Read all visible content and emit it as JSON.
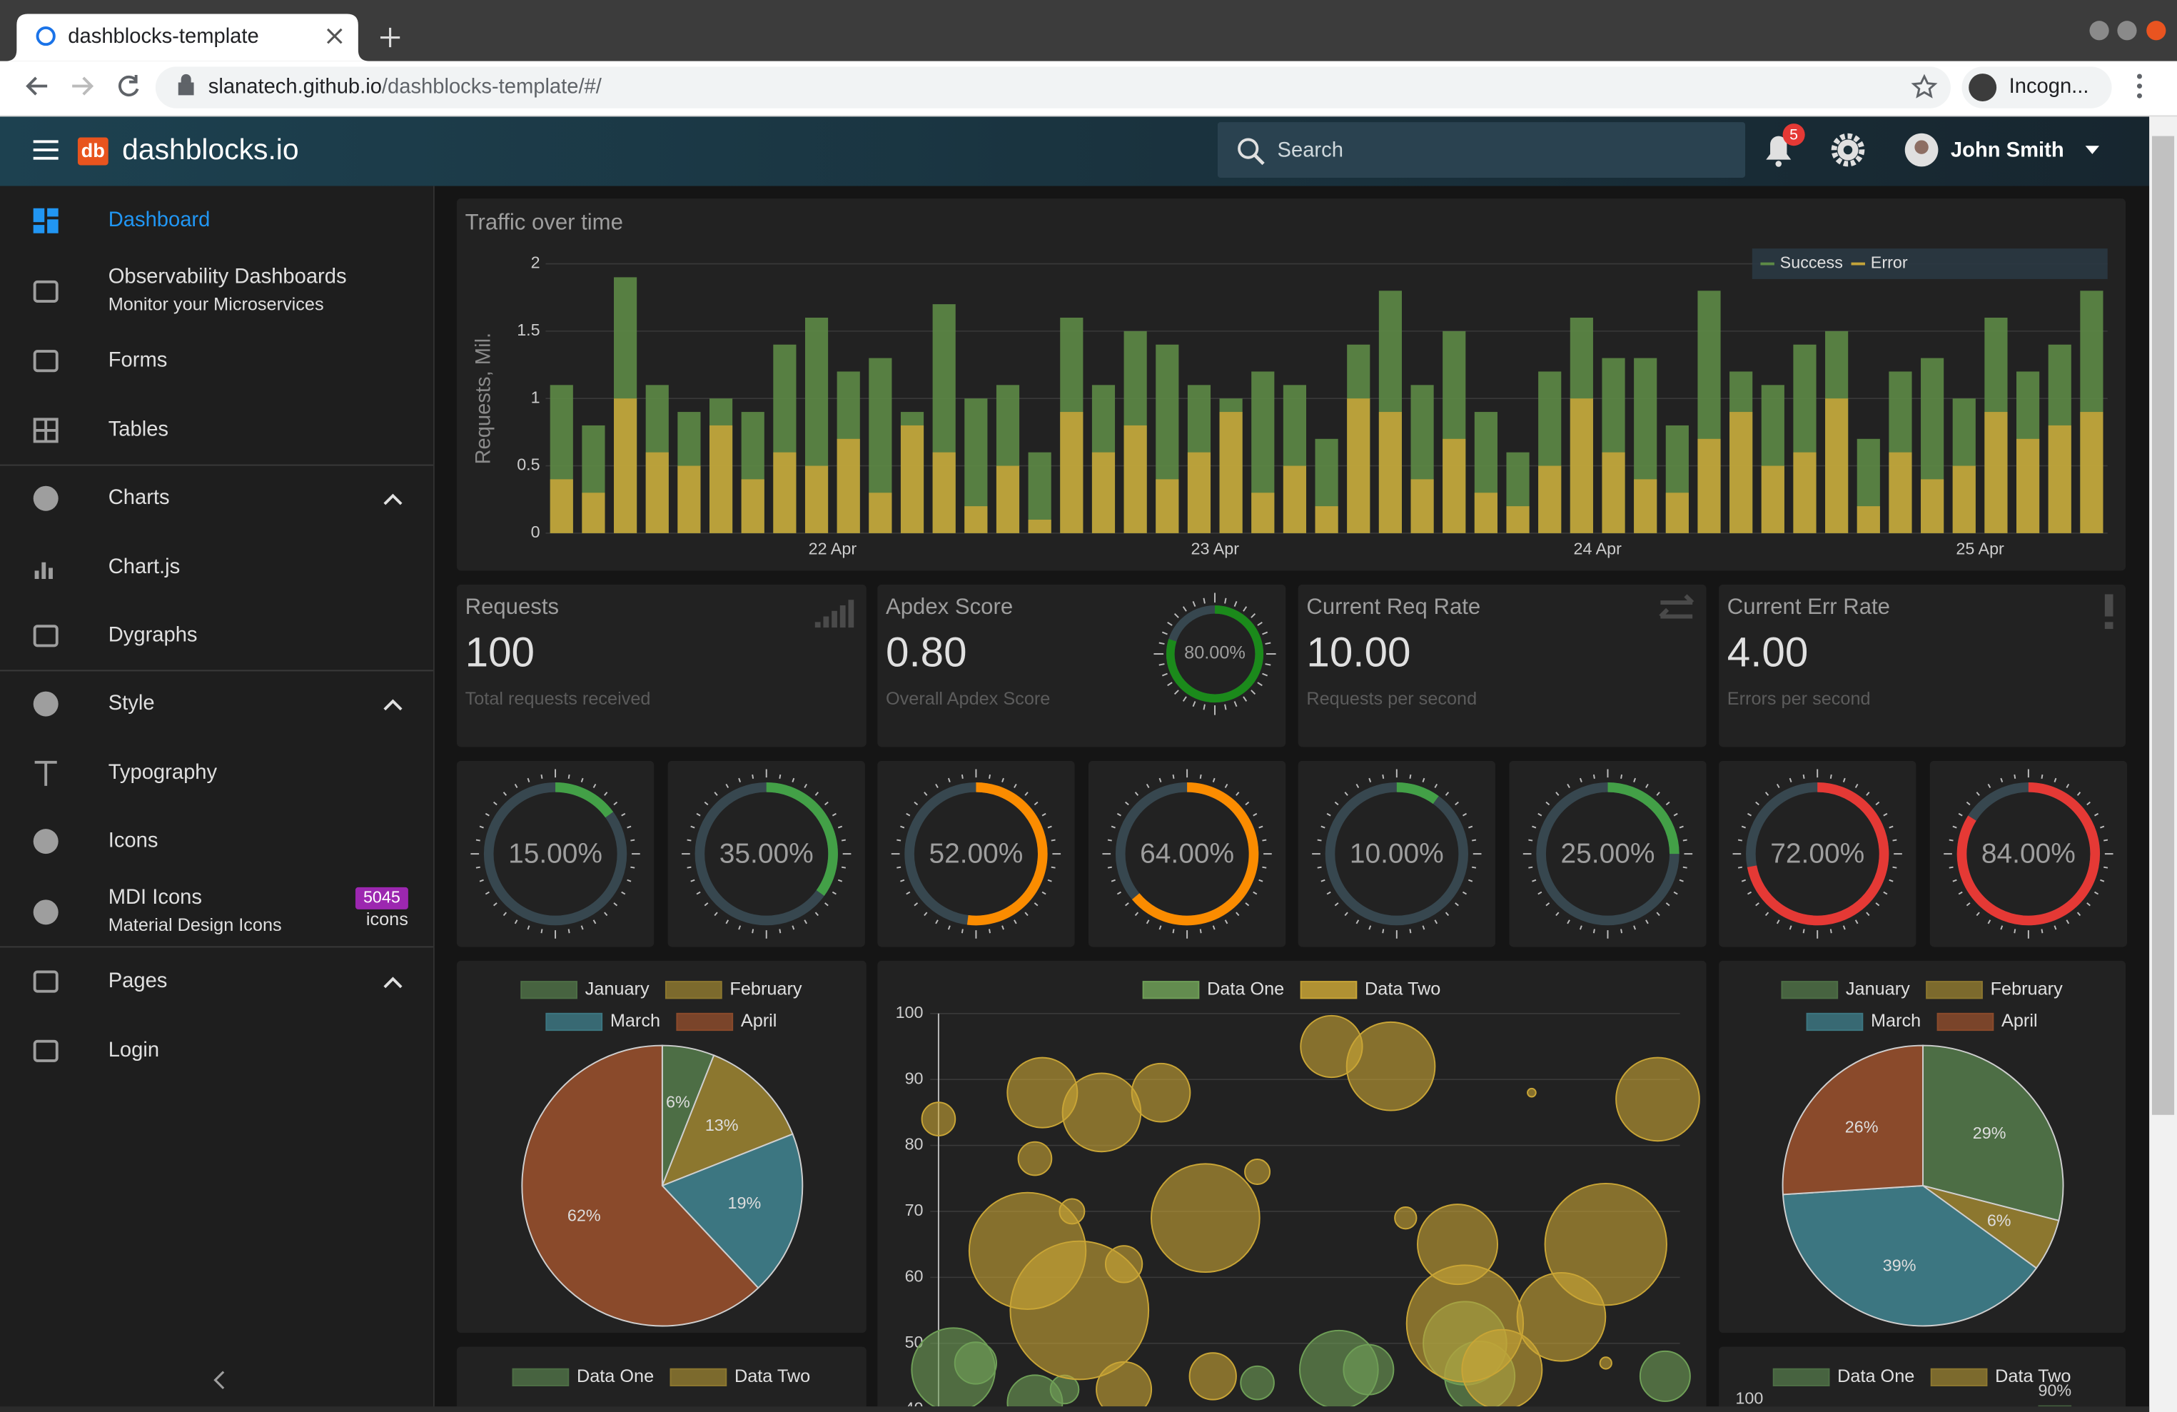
{
  "browser": {
    "tab_title": "dashblocks-template",
    "url_host": "slanatech.github.io",
    "url_path": "/dashblocks-template/#/",
    "profile": "Incogn..."
  },
  "header": {
    "logo": "db",
    "brand": "dashblocks.io",
    "search_placeholder": "Search",
    "notifications": "5",
    "user": "John Smith"
  },
  "sidebar": {
    "items": [
      {
        "label": "Dashboard"
      },
      {
        "label": "Observability Dashboards",
        "sublabel": "Monitor your Microservices"
      },
      {
        "label": "Forms"
      },
      {
        "label": "Tables"
      },
      {
        "label": "Charts"
      },
      {
        "label": "Chart.js"
      },
      {
        "label": "Dygraphs"
      },
      {
        "label": "Style"
      },
      {
        "label": "Typography"
      },
      {
        "label": "Icons"
      },
      {
        "label": "MDI Icons",
        "sublabel": "Material Design Icons",
        "badge": "5045",
        "badge_note": "icons"
      },
      {
        "label": "Pages"
      },
      {
        "label": "Login"
      }
    ]
  },
  "stats": [
    {
      "title": "Requests",
      "value": "100",
      "subtitle": "Total requests received"
    },
    {
      "title": "Apdex Score",
      "value": "0.80",
      "subtitle": "Overall Apdex Score",
      "gauge": {
        "value": 80,
        "label": "80.00%"
      }
    },
    {
      "title": "Current Req Rate",
      "value": "10.00",
      "subtitle": "Requests per second"
    },
    {
      "title": "Current Err Rate",
      "value": "4.00",
      "subtitle": "Errors per second"
    }
  ],
  "chart_data": [
    {
      "type": "bar",
      "title": "Traffic over time",
      "ylabel": "Requests, Mil.",
      "x": [
        -17,
        -15,
        -13,
        -11,
        -9,
        -7,
        -5,
        -3,
        -1,
        1,
        3,
        5,
        7,
        9,
        11,
        13,
        15,
        17,
        19,
        21,
        23,
        25,
        27,
        29,
        31,
        33,
        35,
        37,
        39,
        41,
        43,
        45,
        47,
        49,
        51,
        53,
        55,
        57,
        59,
        61,
        63,
        65,
        67,
        69,
        71,
        73,
        75,
        77,
        79
      ],
      "xlim": [
        -18,
        80
      ],
      "xticks": [
        {
          "value": 0,
          "label": "22 Apr"
        },
        {
          "value": 24,
          "label": "23 Apr"
        },
        {
          "value": 48,
          "label": "24 Apr"
        },
        {
          "value": 72,
          "label": "25 Apr"
        }
      ],
      "ylim": [
        0,
        2
      ],
      "yticks": [
        0,
        0.5,
        1,
        1.5,
        2
      ],
      "grid": true,
      "legend": "top-right",
      "series": [
        {
          "name": "Success",
          "color": "#5d8a46",
          "values": [
            1.1,
            0.8,
            1.9,
            1.1,
            0.9,
            1.0,
            0.9,
            1.4,
            1.6,
            1.2,
            1.3,
            0.9,
            1.7,
            1.0,
            1.1,
            0.6,
            1.6,
            1.1,
            1.5,
            1.4,
            1.1,
            1.0,
            1.2,
            1.1,
            0.7,
            1.4,
            1.8,
            1.1,
            1.5,
            0.9,
            0.6,
            1.2,
            1.6,
            1.3,
            1.3,
            0.8,
            1.8,
            1.2,
            1.1,
            1.4,
            1.5,
            0.7,
            1.2,
            1.3,
            1.0,
            1.6,
            1.2,
            1.4,
            1.8
          ]
        },
        {
          "name": "Error",
          "color": "#c4a43a",
          "values": [
            0.4,
            0.3,
            1.0,
            0.6,
            0.5,
            0.8,
            0.4,
            0.6,
            0.5,
            0.7,
            0.3,
            0.8,
            0.6,
            0.2,
            0.5,
            0.1,
            0.9,
            0.6,
            0.8,
            0.4,
            0.6,
            0.9,
            0.3,
            0.5,
            0.2,
            1.0,
            0.9,
            0.4,
            0.7,
            0.3,
            0.2,
            0.5,
            1.0,
            0.6,
            0.4,
            0.3,
            0.7,
            0.9,
            0.5,
            0.6,
            1.0,
            0.2,
            0.6,
            0.4,
            0.5,
            0.9,
            0.7,
            0.8,
            0.9
          ]
        }
      ]
    },
    {
      "type": "gauge",
      "values": [
        15,
        35,
        52,
        64,
        10,
        25,
        72,
        84
      ],
      "value_labels": [
        "15.00%",
        "35.00%",
        "52.00%",
        "64.00%",
        "10.00%",
        "25.00%",
        "72.00%",
        "84.00%"
      ],
      "colors": [
        "#43a047",
        "#43a047",
        "#fb8c00",
        "#fb8c00",
        "#43a047",
        "#43a047",
        "#e53935",
        "#e53935"
      ],
      "ylim": [
        0,
        100
      ]
    },
    {
      "type": "pie",
      "legend": "top",
      "categories": [
        "January",
        "February",
        "March",
        "April"
      ],
      "values": [
        6,
        13,
        19,
        62
      ],
      "value_labels": [
        "6%",
        "13%",
        "19%",
        "62%"
      ],
      "colors": [
        "#4d6e45",
        "#8c772f",
        "#3c7681",
        "#8a4a2b"
      ]
    },
    {
      "type": "bubble",
      "legend": "top",
      "xlim": [
        0,
        100
      ],
      "ylim": [
        40,
        100
      ],
      "yticks": [
        40,
        50,
        60,
        70,
        80,
        90,
        100
      ],
      "grid": true,
      "series": [
        {
          "name": "Data One",
          "color": "#6f9f57",
          "x": [
            2,
            5,
            13,
            17,
            43,
            54,
            58,
            71,
            73,
            98
          ],
          "values": [
            46,
            47,
            41,
            43,
            44,
            46,
            46,
            50,
            45,
            45
          ],
          "sizes": [
            5,
            2.5,
            3.3,
            1.7,
            2,
            4.7,
            3,
            5,
            4.2,
            3
          ]
        },
        {
          "name": "Data Two",
          "color": "#c9a536",
          "x": [
            0,
            14,
            22,
            30,
            13,
            18,
            12,
            19,
            25,
            36,
            43,
            25,
            37,
            53,
            61,
            80,
            97,
            63,
            70,
            71,
            90,
            84,
            76,
            90
          ],
          "values": [
            84,
            88,
            85,
            88,
            78,
            70,
            64,
            55,
            62,
            69,
            76,
            43,
            45,
            95,
            92,
            88,
            87,
            69,
            65,
            53,
            65,
            54,
            46,
            47
          ],
          "sizes": [
            2,
            4.2,
            4.7,
            3.5,
            2,
            1.5,
            7,
            8.3,
            2.2,
            6.5,
            1.5,
            3.3,
            2.8,
            3.7,
            5.3,
            0.5,
            5,
            1.3,
            4.8,
            7,
            7.3,
            5.3,
            4.8,
            0.7
          ]
        }
      ]
    },
    {
      "type": "pie",
      "legend": "top",
      "categories": [
        "January",
        "February",
        "March",
        "April"
      ],
      "values": [
        29,
        6,
        39,
        26
      ],
      "value_labels": [
        "29%",
        "6%",
        "39%",
        "26%"
      ],
      "colors": [
        "#4d6e45",
        "#8c772f",
        "#3c7681",
        "#8a4a2b"
      ]
    },
    {
      "type": "bar",
      "legend": "top",
      "series": [
        {
          "name": "Data One",
          "color": "#4d6e45"
        },
        {
          "name": "Data Two",
          "color": "#8c772f"
        }
      ]
    },
    {
      "type": "bar",
      "legend": "top",
      "ylim": [
        0,
        100
      ],
      "yticks": [
        100
      ],
      "series": [
        {
          "name": "Data One",
          "color": "#4d6e45",
          "values": [
            90
          ],
          "value_labels": [
            "90%"
          ]
        },
        {
          "name": "Data Two",
          "color": "#8c772f"
        }
      ]
    }
  ]
}
